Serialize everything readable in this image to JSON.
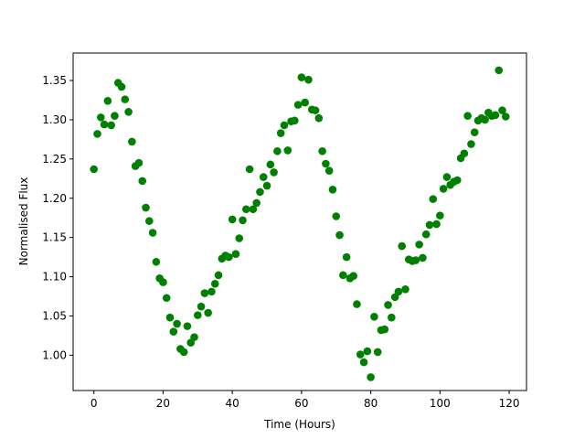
{
  "chart_data": {
    "type": "scatter",
    "title": "",
    "xlabel": "Time (Hours)",
    "ylabel": "Normalised Flux",
    "xlim": [
      -6,
      125
    ],
    "ylim": [
      0.955,
      1.385
    ],
    "xticks": [
      0,
      20,
      40,
      60,
      80,
      100,
      120
    ],
    "yticks": [
      1.0,
      1.05,
      1.1,
      1.15,
      1.2,
      1.25,
      1.3,
      1.35
    ],
    "grid": false,
    "marker_color": "#008000",
    "series": [
      {
        "x": [
          0,
          1,
          2,
          3,
          4,
          5,
          6,
          7,
          8,
          9,
          10,
          11,
          12,
          13,
          14,
          15,
          16,
          17,
          18,
          19,
          20,
          21,
          22,
          23,
          24,
          25,
          26,
          27,
          28,
          29,
          30,
          31,
          32,
          33,
          34,
          35,
          36,
          37,
          38,
          39,
          40,
          41,
          42,
          43,
          44,
          45,
          46,
          47,
          48,
          49,
          50,
          51,
          52,
          53,
          54,
          55,
          56,
          57,
          58,
          59,
          60,
          61,
          62,
          63,
          64,
          65,
          66,
          67,
          68,
          69,
          70,
          71,
          72,
          73,
          74,
          75,
          76,
          77,
          78,
          79,
          80,
          81,
          82,
          83,
          84,
          85,
          86,
          87,
          88,
          89,
          90,
          91,
          92,
          93,
          94,
          95,
          96,
          97,
          98,
          99,
          100,
          101,
          102,
          103,
          104,
          105,
          106,
          107,
          108,
          109,
          110,
          111,
          112,
          113,
          114,
          115,
          116,
          117,
          118,
          119
        ],
        "y": [
          1.237,
          1.282,
          1.303,
          1.294,
          1.324,
          1.293,
          1.305,
          1.347,
          1.342,
          1.326,
          1.31,
          1.272,
          1.241,
          1.245,
          1.222,
          1.188,
          1.171,
          1.156,
          1.119,
          1.098,
          1.093,
          1.073,
          1.048,
          1.03,
          1.04,
          1.008,
          1.004,
          1.037,
          1.016,
          1.023,
          1.051,
          1.062,
          1.079,
          1.054,
          1.081,
          1.091,
          1.102,
          1.123,
          1.127,
          1.125,
          1.173,
          1.129,
          1.149,
          1.172,
          1.186,
          1.237,
          1.186,
          1.194,
          1.208,
          1.227,
          1.216,
          1.243,
          1.233,
          1.26,
          1.283,
          1.293,
          1.261,
          1.298,
          1.299,
          1.319,
          1.354,
          1.322,
          1.351,
          1.313,
          1.312,
          1.302,
          1.26,
          1.244,
          1.235,
          1.211,
          1.177,
          1.153,
          1.102,
          1.125,
          1.098,
          1.101,
          1.065,
          1.001,
          0.991,
          1.005,
          0.972,
          1.049,
          1.004,
          1.032,
          1.033,
          1.064,
          1.048,
          1.074,
          1.081,
          1.139,
          1.084,
          1.122,
          1.12,
          1.121,
          1.141,
          1.124,
          1.154,
          1.166,
          1.199,
          1.167,
          1.178,
          1.212,
          1.227,
          1.217,
          1.221,
          1.223,
          1.251,
          1.257,
          1.305,
          1.269,
          1.284,
          1.299,
          1.302,
          1.3,
          1.309,
          1.305,
          1.306,
          1.363,
          1.312,
          1.304
        ]
      }
    ]
  }
}
